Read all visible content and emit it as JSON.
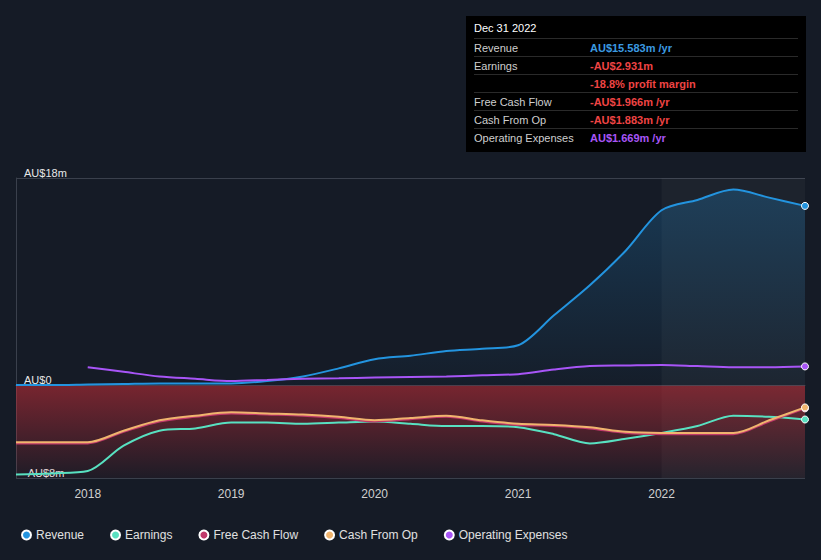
{
  "chart_data": {
    "type": "line",
    "x": [
      2017.5,
      2017.75,
      2018,
      2018.25,
      2018.5,
      2018.75,
      2019,
      2019.25,
      2019.5,
      2019.75,
      2020,
      2020.25,
      2020.5,
      2020.75,
      2021,
      2021.25,
      2021.5,
      2021.75,
      2022,
      2022.25,
      2022.5,
      2022.75,
      2023
    ],
    "xlim": [
      2017.5,
      2023
    ],
    "xticks": [
      2018,
      2019,
      2020,
      2021,
      2022
    ],
    "ylim": [
      -8,
      18
    ],
    "yticks": [
      {
        "value": -8,
        "label": "-AU$8m"
      },
      {
        "value": 0,
        "label": "AU$0"
      },
      {
        "value": 18,
        "label": "AU$18m"
      }
    ],
    "grid": true,
    "legend": "bottom",
    "series": [
      {
        "name": "Revenue",
        "color": "#2394df",
        "values": [
          0.05,
          0.05,
          0.1,
          0.15,
          0.2,
          0.2,
          0.2,
          0.4,
          0.8,
          1.5,
          2.3,
          2.6,
          3.0,
          3.2,
          3.5,
          6.1,
          8.7,
          11.7,
          15.2,
          16.1,
          17.0,
          16.3,
          15.583
        ]
      },
      {
        "name": "Earnings",
        "color": "#58e1c1",
        "values": [
          -7.7,
          -7.6,
          -7.4,
          -5.2,
          -3.9,
          -3.7,
          -3.2,
          -3.2,
          -3.3,
          -3.2,
          -3.1,
          -3.3,
          -3.5,
          -3.5,
          -3.6,
          -4.2,
          -5.0,
          -4.6,
          -4.1,
          -3.5,
          -2.6,
          -2.7,
          -2.931
        ]
      },
      {
        "name": "Free Cash Flow",
        "color": "#c0396b",
        "values": [
          -5.0,
          -5.0,
          -5.0,
          -4.0,
          -3.1,
          -2.7,
          -2.4,
          -2.5,
          -2.6,
          -2.8,
          -3.1,
          -2.9,
          -2.7,
          -3.1,
          -3.4,
          -3.5,
          -3.7,
          -4.1,
          -4.2,
          -4.2,
          -4.2,
          -3.1,
          -1.966
        ]
      },
      {
        "name": "Cash From Op",
        "color": "#f0b46e",
        "values": [
          -4.9,
          -4.9,
          -4.9,
          -3.9,
          -3.0,
          -2.6,
          -2.3,
          -2.4,
          -2.5,
          -2.7,
          -3.0,
          -2.8,
          -2.6,
          -3.0,
          -3.3,
          -3.4,
          -3.6,
          -4.0,
          -4.1,
          -4.1,
          -4.1,
          -3.0,
          -1.883
        ]
      },
      {
        "name": "Operating Expenses",
        "color": "#a855f7",
        "values": [
          null,
          null,
          1.6,
          1.2,
          0.8,
          0.6,
          0.4,
          0.5,
          0.6,
          0.65,
          0.7,
          0.75,
          0.8,
          0.9,
          1.0,
          1.4,
          1.7,
          1.75,
          1.8,
          1.7,
          1.6,
          1.6,
          1.669
        ]
      }
    ],
    "annotation": {
      "title": "Dec 31 2022",
      "rows": [
        {
          "label": "Revenue",
          "value": "AU$15.583m /yr",
          "color": "#3b9ae1"
        },
        {
          "label": "Earnings",
          "value": "-AU$2.931m",
          "color": "#ef4444"
        },
        {
          "label": "",
          "value": "-18.8% profit margin",
          "color": "#ef4444"
        },
        {
          "label": "Free Cash Flow",
          "value": "-AU$1.966m /yr",
          "color": "#ef4444"
        },
        {
          "label": "Cash From Op",
          "value": "-AU$1.883m /yr",
          "color": "#ef4444"
        },
        {
          "label": "Operating Expenses",
          "value": "AU$1.669m /yr",
          "color": "#a855f7"
        }
      ]
    }
  }
}
